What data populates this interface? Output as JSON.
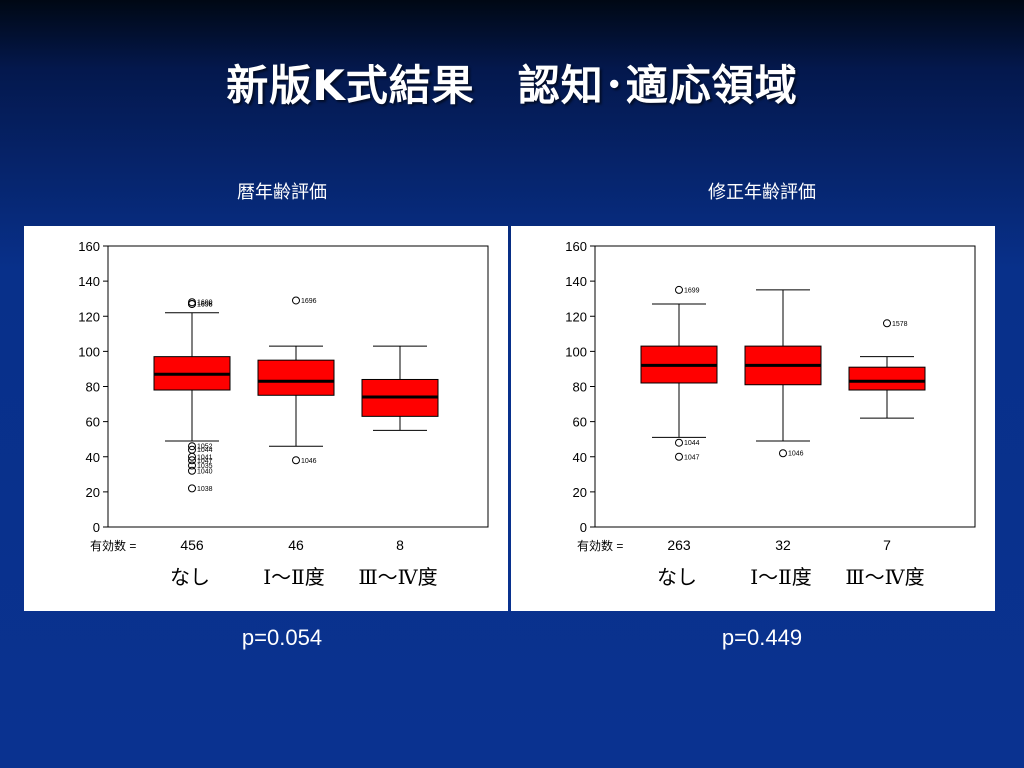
{
  "slide": {
    "title": "新版K式結果　認知･適応領域"
  },
  "chart_data": [
    {
      "type": "box",
      "title": "暦年齢評価",
      "n_label": "有効数 =",
      "ylim": [
        0,
        160
      ],
      "yticks": [
        0,
        20,
        40,
        60,
        80,
        100,
        120,
        140,
        160
      ],
      "p_value": "p=0.054",
      "groups": [
        {
          "name": "なし",
          "n": "456",
          "whisker_low": 49,
          "q1": 78,
          "median": 87,
          "q3": 97,
          "whisker_high": 122,
          "outliers": [
            {
              "v": 127,
              "label": "1696"
            },
            {
              "v": 128,
              "label": "1690"
            },
            {
              "v": 127,
              "label": "1698"
            },
            {
              "v": 46,
              "label": "1052"
            },
            {
              "v": 44,
              "label": "1044"
            },
            {
              "v": 40,
              "label": "1041"
            },
            {
              "v": 38,
              "label": "1047"
            },
            {
              "v": 35,
              "label": "1035"
            },
            {
              "v": 32,
              "label": "1040"
            },
            {
              "v": 22,
              "label": "1038"
            }
          ]
        },
        {
          "name": "Ⅰ〜Ⅱ度",
          "n": "46",
          "whisker_low": 46,
          "q1": 75,
          "median": 83,
          "q3": 95,
          "whisker_high": 103,
          "outliers": [
            {
              "v": 129,
              "label": "1696"
            },
            {
              "v": 38,
              "label": "1046"
            }
          ]
        },
        {
          "name": "Ⅲ〜Ⅳ度",
          "n": "8",
          "whisker_low": 55,
          "q1": 63,
          "median": 74,
          "q3": 84,
          "whisker_high": 103,
          "outliers": []
        }
      ]
    },
    {
      "type": "box",
      "title": "修正年齢評価",
      "n_label": "有効数 =",
      "ylim": [
        0,
        160
      ],
      "yticks": [
        0,
        20,
        40,
        60,
        80,
        100,
        120,
        140,
        160
      ],
      "p_value": "p=0.449",
      "groups": [
        {
          "name": "なし",
          "n": "263",
          "whisker_low": 51,
          "q1": 82,
          "median": 92,
          "q3": 103,
          "whisker_high": 127,
          "outliers": [
            {
              "v": 135,
              "label": "1699"
            },
            {
              "v": 48,
              "label": "1044"
            },
            {
              "v": 40,
              "label": "1047"
            }
          ]
        },
        {
          "name": "Ⅰ〜Ⅱ度",
          "n": "32",
          "whisker_low": 49,
          "q1": 81,
          "median": 92,
          "q3": 103,
          "whisker_high": 135,
          "outliers": [
            {
              "v": 42,
              "label": "1046"
            }
          ]
        },
        {
          "name": "Ⅲ〜Ⅳ度",
          "n": "7",
          "whisker_low": 62,
          "q1": 78,
          "median": 83,
          "q3": 91,
          "whisker_high": 97,
          "outliers": [
            {
              "v": 116,
              "label": "1578"
            }
          ]
        }
      ]
    }
  ],
  "colors": {
    "box_fill": "#ff0000",
    "panel": "#ffffff",
    "text": "#ffffff"
  }
}
